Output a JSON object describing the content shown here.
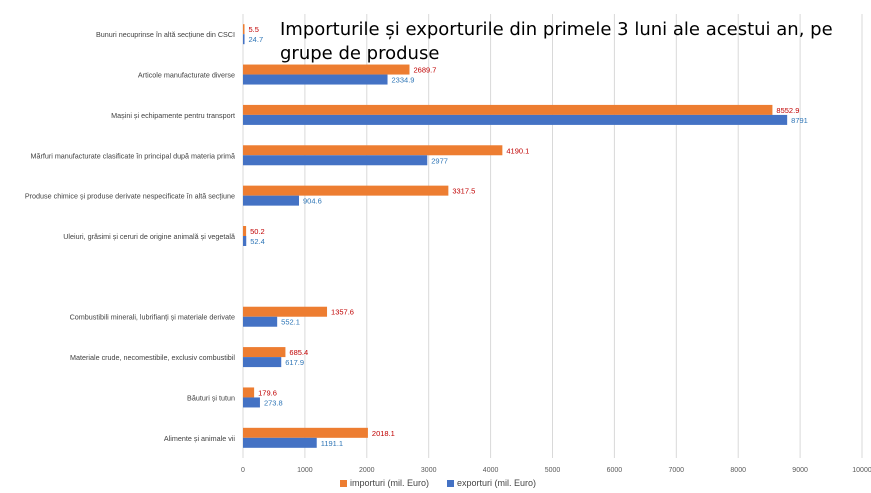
{
  "chart_data": {
    "type": "bar",
    "orientation": "horizontal",
    "title": "Importurile și exporturile din primele 3 luni ale acestui an, pe grupe de produse",
    "categories": [
      "Bunuri necuprinse în altă secțiune din CSCI",
      "Articole manufacturate diverse",
      "Mașini și echipamente pentru transport",
      "Mărfuri manufacturate clasificate în principal după materia primă",
      "Produse chimice și produse derivate nespecificate în altă secțiune",
      "Uleiuri, grăsimi și ceruri de origine animală și vegetală",
      "",
      "Combustibili minerali, lubrifianți și materiale derivate",
      "Materiale crude, necomestibile, exclusiv combustibil",
      "Băuturi și tutun",
      "Alimente și animale vii"
    ],
    "series": [
      {
        "name": "importuri (mil. Euro)",
        "color": "#ED7D31",
        "label_color": "#C00000",
        "values": [
          5.5,
          2689.7,
          8552.9,
          4190.1,
          3317.5,
          50.2,
          null,
          1357.6,
          685.4,
          179.6,
          2018.1
        ],
        "labels": [
          "5.5",
          "2689.7",
          "8552.9",
          "4190.1",
          "3317.5",
          "50.2",
          "",
          "1357.6",
          "685.4",
          "179.6",
          "2018.1"
        ]
      },
      {
        "name": "exporturi (mil. Euro)",
        "color": "#4472C4",
        "label_color": "#2E75B6",
        "values": [
          24.7,
          2334.9,
          8791,
          2977,
          904.6,
          52.4,
          null,
          552.1,
          617.9,
          273.8,
          1191.1
        ],
        "labels": [
          "24.7",
          "2334.9",
          "8791",
          "2977",
          "904.6",
          "52.4",
          "",
          "552.1",
          "617.9",
          "273.8",
          "1191.1"
        ]
      }
    ],
    "xlim": [
      0,
      10000
    ],
    "xticks": [
      "0",
      "1000",
      "2000",
      "3000",
      "4000",
      "5000",
      "6000",
      "7000",
      "8000",
      "9000",
      "10000"
    ],
    "grid": true,
    "legend_position": "bottom"
  }
}
